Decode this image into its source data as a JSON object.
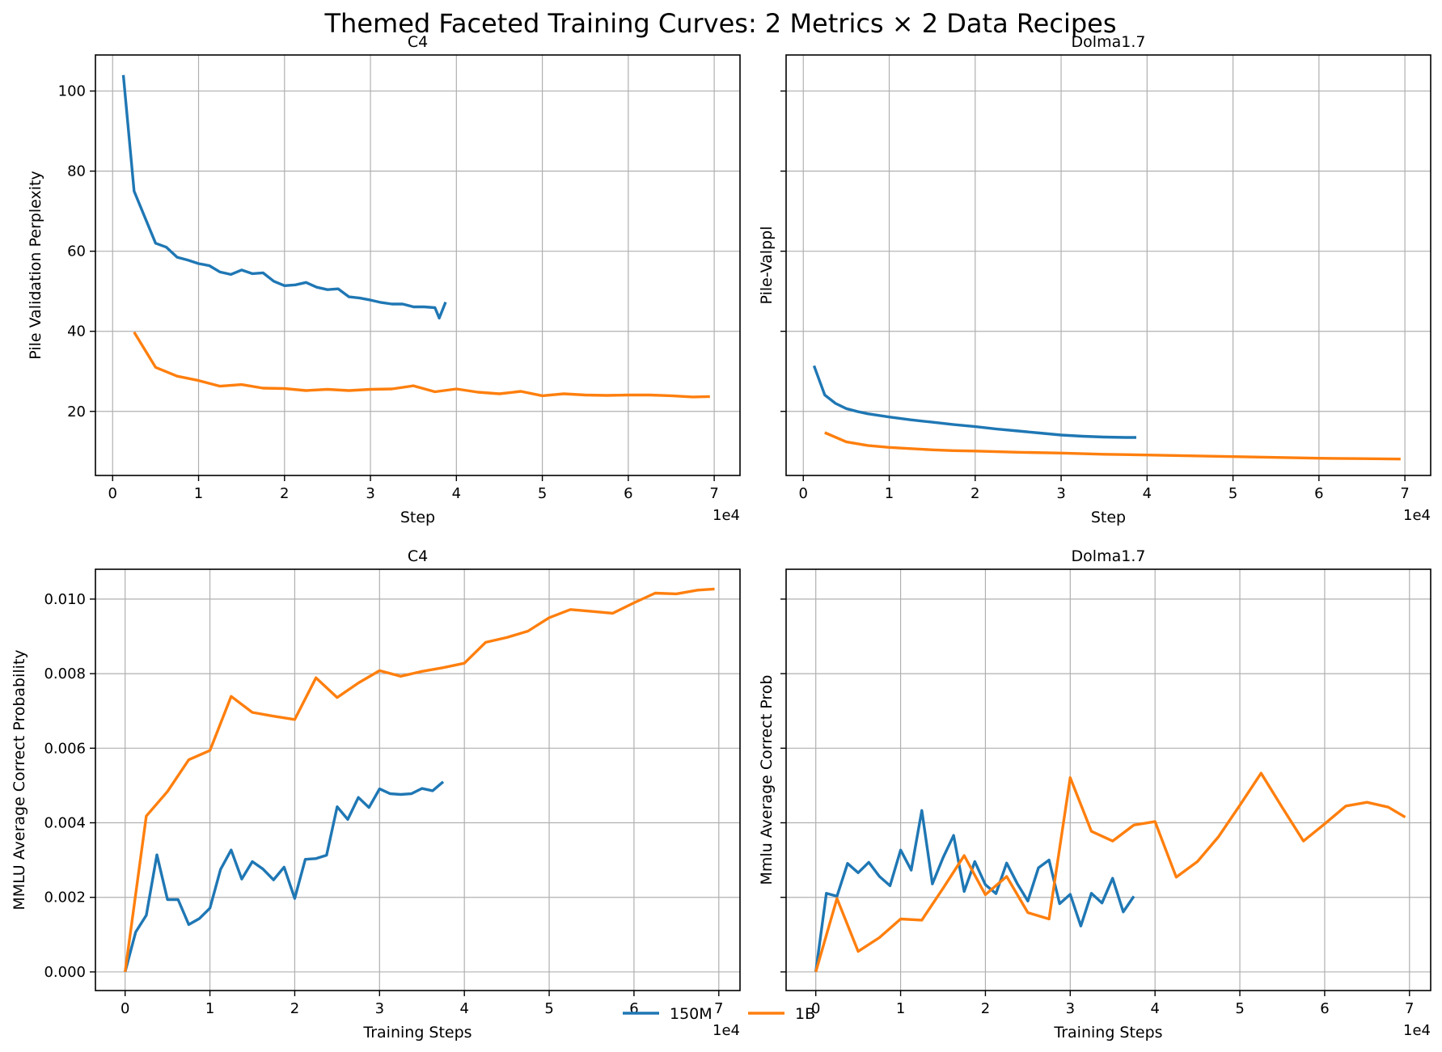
{
  "figure": {
    "suptitle": "Themed Faceted Training Curves: 2 Metrics × 2 Data Recipes",
    "colors": {
      "150M": "#1f77b4",
      "1B": "#ff7f0e"
    },
    "legend": {
      "placement": "lower-center",
      "entries": [
        "150M",
        "1B"
      ]
    }
  },
  "chart_data": [
    {
      "type": "line",
      "title": "C4",
      "xlabel": "Step",
      "ylabel": "Pile Validation Perplexity",
      "x_offset_label": "1e4",
      "xlim": [
        -2000,
        73000
      ],
      "ylim": [
        4,
        109
      ],
      "xticks": [
        0,
        10000,
        20000,
        30000,
        40000,
        50000,
        60000,
        70000
      ],
      "xtick_labels": [
        "0",
        "1",
        "2",
        "3",
        "4",
        "5",
        "6",
        "7"
      ],
      "yticks": [
        20,
        40,
        60,
        80,
        100
      ],
      "ytick_labels": [
        "20",
        "40",
        "60",
        "80",
        "100"
      ],
      "show_ytick_labels": true,
      "grid": true,
      "series": [
        {
          "name": "150M",
          "color": "#1f77b4",
          "x": [
            1250,
            2500,
            3750,
            5000,
            6250,
            7500,
            8750,
            10000,
            11250,
            12500,
            13750,
            15000,
            16250,
            17500,
            18750,
            20000,
            21250,
            22500,
            23750,
            25000,
            26250,
            27500,
            28750,
            30000,
            31250,
            32500,
            33750,
            35000,
            36250,
            37500,
            38000,
            38750
          ],
          "y": [
            104,
            75,
            68.5,
            62,
            61,
            58.5,
            57.8,
            56.9,
            56.4,
            54.8,
            54.2,
            55.3,
            54.4,
            54.6,
            52.5,
            51.4,
            51.6,
            52.2,
            51,
            50.4,
            50.6,
            48.6,
            48.3,
            47.8,
            47.2,
            46.8,
            46.8,
            46.1,
            46.1,
            45.9,
            43.3,
            47.3
          ]
        },
        {
          "name": "1B",
          "color": "#ff7f0e",
          "x": [
            2500,
            5000,
            7500,
            10000,
            12500,
            15000,
            17500,
            20000,
            22500,
            25000,
            27500,
            30000,
            32500,
            35000,
            37500,
            40000,
            42500,
            45000,
            47500,
            50000,
            52500,
            55000,
            57500,
            60000,
            62500,
            65000,
            67500,
            69500
          ],
          "y": [
            39.8,
            31,
            28.8,
            27.7,
            26.3,
            26.7,
            25.8,
            25.7,
            25.2,
            25.5,
            25.2,
            25.5,
            25.6,
            26.4,
            24.9,
            25.6,
            24.8,
            24.4,
            25,
            23.9,
            24.4,
            24.1,
            24,
            24.1,
            24.1,
            23.9,
            23.6,
            23.7
          ]
        }
      ]
    },
    {
      "type": "line",
      "title": "Dolma1.7",
      "xlabel": "Step",
      "ylabel": "Pile-Valppl",
      "x_offset_label": "1e4",
      "xlim": [
        -2000,
        73000
      ],
      "ylim": [
        4,
        109
      ],
      "xticks": [
        0,
        10000,
        20000,
        30000,
        40000,
        50000,
        60000,
        70000
      ],
      "xtick_labels": [
        "0",
        "1",
        "2",
        "3",
        "4",
        "5",
        "6",
        "7"
      ],
      "yticks": [
        20,
        40,
        60,
        80,
        100
      ],
      "ytick_labels": [
        "",
        "",
        "",
        "",
        ""
      ],
      "show_ytick_labels": false,
      "grid": true,
      "series": [
        {
          "name": "150M",
          "color": "#1f77b4",
          "x": [
            1250,
            2500,
            3750,
            5000,
            6250,
            7500,
            10000,
            12500,
            15000,
            17500,
            20000,
            22500,
            25000,
            27500,
            30000,
            32500,
            35000,
            37500,
            38750
          ],
          "y": [
            31.4,
            24.1,
            22,
            20.7,
            20,
            19.4,
            18.6,
            17.9,
            17.3,
            16.7,
            16.2,
            15.6,
            15.1,
            14.6,
            14.1,
            13.8,
            13.6,
            13.5,
            13.5
          ]
        },
        {
          "name": "1B",
          "color": "#ff7f0e",
          "x": [
            2500,
            5000,
            7500,
            10000,
            12500,
            15000,
            17500,
            20000,
            25000,
            30000,
            35000,
            40000,
            45000,
            50000,
            55000,
            60000,
            65000,
            69500
          ],
          "y": [
            14.7,
            12.4,
            11.5,
            11,
            10.7,
            10.4,
            10.2,
            10.1,
            9.8,
            9.6,
            9.3,
            9.1,
            8.9,
            8.7,
            8.5,
            8.3,
            8.2,
            8.1
          ]
        }
      ]
    },
    {
      "type": "line",
      "title": "C4",
      "xlabel": "Training Steps",
      "ylabel": "MMLU Average Correct Probability",
      "x_offset_label": "1e4",
      "xlim": [
        -3500,
        72500
      ],
      "ylim": [
        -0.0005,
        0.0108
      ],
      "xticks": [
        0,
        10000,
        20000,
        30000,
        40000,
        50000,
        60000,
        70000
      ],
      "xtick_labels": [
        "0",
        "1",
        "2",
        "3",
        "4",
        "5",
        "6",
        "7"
      ],
      "yticks": [
        0,
        0.002,
        0.004,
        0.006,
        0.008,
        0.01
      ],
      "ytick_labels": [
        "0.000",
        "0.002",
        "0.004",
        "0.006",
        "0.008",
        "0.010"
      ],
      "show_ytick_labels": true,
      "grid": true,
      "series": [
        {
          "name": "150M",
          "color": "#1f77b4",
          "x": [
            0,
            1250,
            2500,
            3750,
            5000,
            6250,
            7500,
            8750,
            10000,
            11250,
            12500,
            13750,
            15000,
            16250,
            17500,
            18750,
            20000,
            21250,
            22500,
            23750,
            25000,
            26250,
            27500,
            28750,
            30000,
            31250,
            32500,
            33750,
            35000,
            36250,
            37500
          ],
          "y": [
            0,
            0.00107,
            0.00152,
            0.00314,
            0.00194,
            0.00194,
            0.00127,
            0.00143,
            0.00171,
            0.00275,
            0.00327,
            0.00249,
            0.00296,
            0.00276,
            0.00247,
            0.00281,
            0.00197,
            0.00302,
            0.00304,
            0.00313,
            0.00443,
            0.00409,
            0.00468,
            0.00441,
            0.00491,
            0.00478,
            0.00476,
            0.00478,
            0.00492,
            0.00486,
            0.0051
          ]
        },
        {
          "name": "1B",
          "color": "#ff7f0e",
          "x": [
            0,
            2500,
            5000,
            7500,
            10000,
            12500,
            15000,
            17500,
            20000,
            22500,
            25000,
            27500,
            30000,
            32500,
            35000,
            37500,
            40000,
            42500,
            45000,
            47500,
            50000,
            52500,
            55000,
            57500,
            60000,
            62500,
            65000,
            67500,
            69500
          ],
          "y": [
            0,
            0.00418,
            0.00484,
            0.00569,
            0.00594,
            0.00739,
            0.00696,
            0.00686,
            0.00677,
            0.00789,
            0.00736,
            0.00775,
            0.00808,
            0.00793,
            0.00806,
            0.00816,
            0.00828,
            0.00884,
            0.00897,
            0.00914,
            0.0095,
            0.00972,
            0.00967,
            0.00962,
            0.0099,
            0.01016,
            0.01014,
            0.01024,
            0.01027
          ]
        }
      ]
    },
    {
      "type": "line",
      "title": "Dolma1.7",
      "xlabel": "Training Steps",
      "ylabel": "Mmlu Average Correct Prob",
      "x_offset_label": "1e4",
      "xlim": [
        -3500,
        72500
      ],
      "ylim": [
        -0.0005,
        0.0108
      ],
      "xticks": [
        0,
        10000,
        20000,
        30000,
        40000,
        50000,
        60000,
        70000
      ],
      "xtick_labels": [
        "0",
        "1",
        "2",
        "3",
        "4",
        "5",
        "6",
        "7"
      ],
      "yticks": [
        0,
        0.002,
        0.004,
        0.006,
        0.008,
        0.01
      ],
      "ytick_labels": [
        "",
        "",
        "",
        "",
        "",
        ""
      ],
      "show_ytick_labels": false,
      "grid": true,
      "series": [
        {
          "name": "150M",
          "color": "#1f77b4",
          "x": [
            0,
            1250,
            2500,
            3750,
            5000,
            6250,
            7500,
            8750,
            10000,
            11250,
            12500,
            13750,
            15000,
            16250,
            17500,
            18750,
            20000,
            21250,
            22500,
            23750,
            25000,
            26250,
            27500,
            28750,
            30000,
            31250,
            32500,
            33750,
            35000,
            36250,
            37500
          ],
          "y": [
            0,
            0.00211,
            0.00203,
            0.00291,
            0.00266,
            0.00294,
            0.00256,
            0.00231,
            0.00327,
            0.00273,
            0.00433,
            0.00236,
            0.00306,
            0.00366,
            0.00216,
            0.00296,
            0.00234,
            0.0021,
            0.00292,
            0.00237,
            0.0019,
            0.00279,
            0.003,
            0.00183,
            0.00208,
            0.00123,
            0.00211,
            0.00185,
            0.00251,
            0.00161,
            0.00203
          ]
        },
        {
          "name": "1B",
          "color": "#ff7f0e",
          "x": [
            0,
            2500,
            5000,
            7500,
            10000,
            12500,
            15000,
            17500,
            20000,
            22500,
            25000,
            27500,
            30000,
            32500,
            35000,
            37500,
            40000,
            42500,
            45000,
            47500,
            50000,
            52500,
            55000,
            57500,
            60000,
            62500,
            65000,
            67500,
            69500
          ],
          "y": [
            0,
            0.00197,
            0.00055,
            0.00092,
            0.00142,
            0.00139,
            0.00224,
            0.00312,
            0.00207,
            0.00256,
            0.00159,
            0.00142,
            0.00521,
            0.00377,
            0.00351,
            0.00394,
            0.00403,
            0.00254,
            0.00296,
            0.00363,
            0.00447,
            0.00533,
            0.00441,
            0.00351,
            0.00397,
            0.00445,
            0.00455,
            0.00442,
            0.00415
          ]
        }
      ]
    }
  ]
}
